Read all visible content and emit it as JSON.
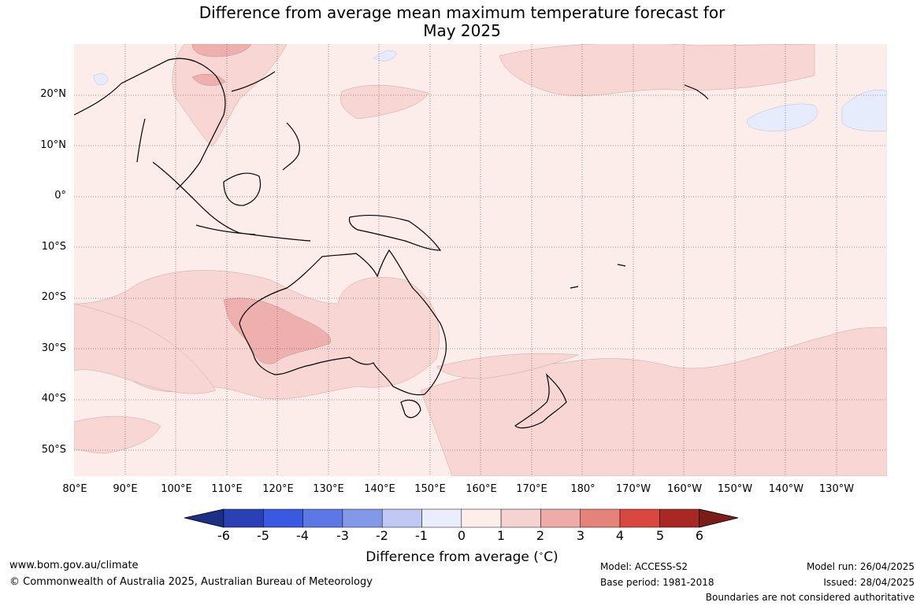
{
  "header": {
    "title_line1": "Difference from average mean maximum temperature forecast for",
    "title_line2": "May 2025"
  },
  "map": {
    "lat_labels": [
      "20°N",
      "10°N",
      "0°",
      "10°S",
      "20°S",
      "30°S",
      "40°S",
      "50°S"
    ],
    "lon_labels": [
      "80°E",
      "90°E",
      "100°E",
      "110°E",
      "120°E",
      "130°E",
      "140°E",
      "150°E",
      "160°E",
      "170°E",
      "180°",
      "170°W",
      "160°W",
      "150°W",
      "140°W",
      "130°W"
    ],
    "lat_range": [
      -55,
      30
    ],
    "lon_range": [
      80,
      240
    ],
    "colors": {
      "ocean_base": "#fcecea",
      "warm_1_2": "#f7d6d4",
      "warm_2_3": "#eeb0ae",
      "cool_0_-1": "#e7ecfd",
      "coastline": "#000000",
      "border": "#888888"
    }
  },
  "legend": {
    "ticks": [
      "-6",
      "-5",
      "-4",
      "-3",
      "-2",
      "-1",
      "0",
      "1",
      "2",
      "3",
      "4",
      "5",
      "6"
    ],
    "colors": [
      "#1b2f84",
      "#2a40b4",
      "#3a59e0",
      "#5b78e4",
      "#8498e9",
      "#c0c9f3",
      "#eaedfc",
      "#fdeeec",
      "#f5d3d2",
      "#eeaba8",
      "#e4837a",
      "#d9483f",
      "#a82923",
      "#7a1c18"
    ],
    "label": "Difference from average (°C)",
    "label_prefix": "Difference from average (",
    "label_deg": "∘",
    "label_unit": "C)"
  },
  "footer": {
    "website": "www.bom.gov.au/climate",
    "copyright": "© Commonwealth of Australia 2025, Australian Bureau of Meteorology",
    "model": "Model: ACCESS-S2",
    "base_period": "Base period: 1981-2018",
    "model_run": "Model run: 26/04/2025",
    "issued": "Issued: 28/04/2025",
    "boundaries": "Boundaries are not considered authoritative"
  }
}
